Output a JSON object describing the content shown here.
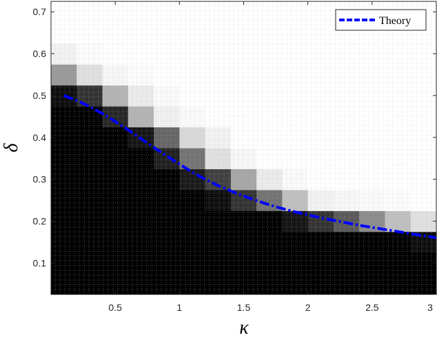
{
  "chart_data": {
    "type": "heatmap",
    "title": "",
    "xlabel": "κ",
    "ylabel": "δ",
    "xlim": [
      0.0,
      3.0
    ],
    "ylim": [
      0.025,
      0.725
    ],
    "x_ticks": [
      "0.5",
      "1",
      "1.5",
      "2",
      "2.5",
      "3"
    ],
    "x_tick_values": [
      0.5,
      1,
      1.5,
      2,
      2.5,
      3
    ],
    "y_ticks": [
      "0.1",
      "0.2",
      "0.3",
      "0.4",
      "0.5",
      "0.6",
      "0.7"
    ],
    "y_tick_values": [
      0.1,
      0.2,
      0.3,
      0.4,
      0.5,
      0.6,
      0.7
    ],
    "grid": true,
    "legend_position": "top-right",
    "colormap": "gray, 1 = black, 0 = white",
    "heatmap": {
      "kappa": [
        0.1,
        0.3,
        0.5,
        0.7,
        0.9,
        1.1,
        1.3,
        1.5,
        1.7,
        1.9,
        2.1,
        2.3,
        2.5,
        2.7,
        2.9
      ],
      "delta": [
        0.05,
        0.1,
        0.15,
        0.2,
        0.25,
        0.3,
        0.35,
        0.4,
        0.45,
        0.5,
        0.55,
        0.6,
        0.65,
        0.7
      ],
      "values": [
        [
          1,
          1,
          1,
          1,
          1,
          1,
          1,
          1,
          1,
          1,
          1,
          1,
          1,
          1,
          1
        ],
        [
          1,
          1,
          1,
          1,
          1,
          1,
          1,
          1,
          1,
          1,
          1,
          1,
          1,
          1,
          1
        ],
        [
          1,
          1,
          1,
          1,
          1,
          1,
          1,
          1,
          1,
          1,
          1,
          1,
          1,
          1,
          0.95
        ],
        [
          1,
          1,
          1,
          1,
          1,
          1,
          1,
          1,
          1,
          0.92,
          0.8,
          0.65,
          0.45,
          0.25,
          0.12
        ],
        [
          1,
          1,
          1,
          1,
          1,
          1,
          0.95,
          0.8,
          0.55,
          0.25,
          0.05,
          0.03,
          0.02,
          0.01,
          0
        ],
        [
          1,
          1,
          1,
          1,
          1,
          0.9,
          0.75,
          0.35,
          0.08,
          0.02,
          0,
          0,
          0,
          0,
          0
        ],
        [
          1,
          1,
          1,
          1,
          0.88,
          0.55,
          0.12,
          0.03,
          0,
          0,
          0,
          0,
          0,
          0,
          0
        ],
        [
          1,
          1,
          1,
          0.92,
          0.6,
          0.15,
          0.05,
          0,
          0,
          0,
          0,
          0,
          0,
          0,
          0
        ],
        [
          1,
          1,
          0.85,
          0.3,
          0.06,
          0.02,
          0,
          0,
          0,
          0,
          0,
          0,
          0,
          0,
          0
        ],
        [
          0.95,
          0.8,
          0.3,
          0.08,
          0.02,
          0,
          0,
          0,
          0,
          0,
          0,
          0,
          0,
          0,
          0
        ],
        [
          0.4,
          0.12,
          0.03,
          0.01,
          0,
          0,
          0,
          0,
          0,
          0,
          0,
          0,
          0,
          0,
          0
        ],
        [
          0.05,
          0.01,
          0,
          0,
          0,
          0,
          0,
          0,
          0,
          0,
          0,
          0,
          0,
          0,
          0
        ],
        [
          0,
          0,
          0,
          0,
          0,
          0,
          0,
          0,
          0,
          0,
          0,
          0,
          0,
          0,
          0
        ],
        [
          0,
          0,
          0,
          0,
          0,
          0,
          0,
          0,
          0,
          0,
          0,
          0,
          0,
          0,
          0
        ]
      ]
    },
    "series": [
      {
        "name": "Theory",
        "style": "dash-dot",
        "color": "#0000ff",
        "x": [
          0.1,
          0.2,
          0.3,
          0.4,
          0.5,
          0.6,
          0.7,
          0.8,
          0.9,
          1.0,
          1.1,
          1.2,
          1.3,
          1.4,
          1.5,
          1.6,
          1.7,
          1.8,
          1.9,
          2.0,
          2.1,
          2.2,
          2.3,
          2.4,
          2.5,
          2.6,
          2.7,
          2.8,
          2.9,
          3.0
        ],
        "y": [
          0.5,
          0.488,
          0.474,
          0.457,
          0.438,
          0.418,
          0.397,
          0.376,
          0.356,
          0.336,
          0.317,
          0.3,
          0.285,
          0.272,
          0.26,
          0.249,
          0.239,
          0.23,
          0.222,
          0.215,
          0.208,
          0.202,
          0.196,
          0.19,
          0.185,
          0.18,
          0.175,
          0.17,
          0.165,
          0.16
        ]
      }
    ]
  }
}
